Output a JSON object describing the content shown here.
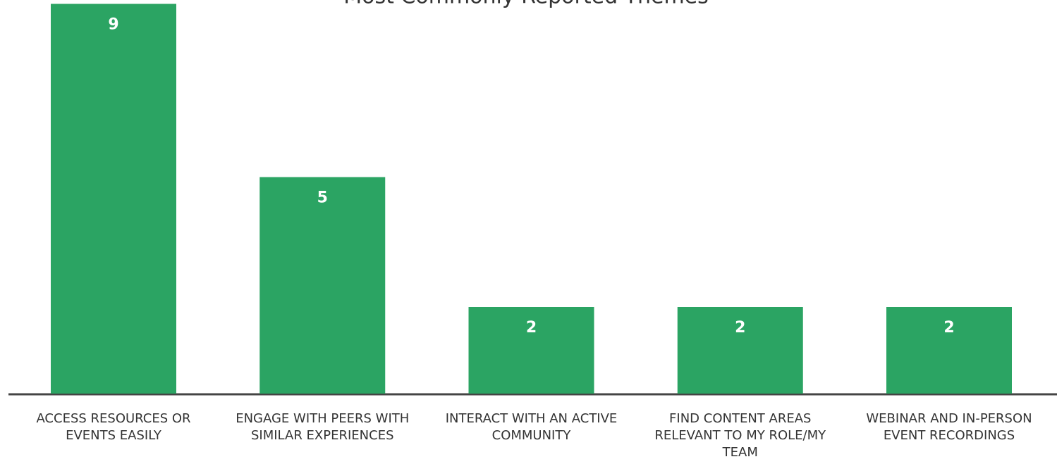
{
  "chart_data": {
    "type": "bar",
    "title": "Most Commonly Reported Themes",
    "categories": [
      "ACCESS RESOURCES OR EVENTS EASILY",
      "ENGAGE WITH PEERS WITH SIMILAR EXPERIENCES",
      "INTERACT WITH AN ACTIVE COMMUNITY",
      "FIND CONTENT AREAS RELEVANT TO MY ROLE/MY TEAM",
      "WEBINAR AND IN-PERSON EVENT RECORDINGS"
    ],
    "values": [
      9,
      5,
      2,
      2,
      2
    ],
    "color": "#2ba463"
  }
}
